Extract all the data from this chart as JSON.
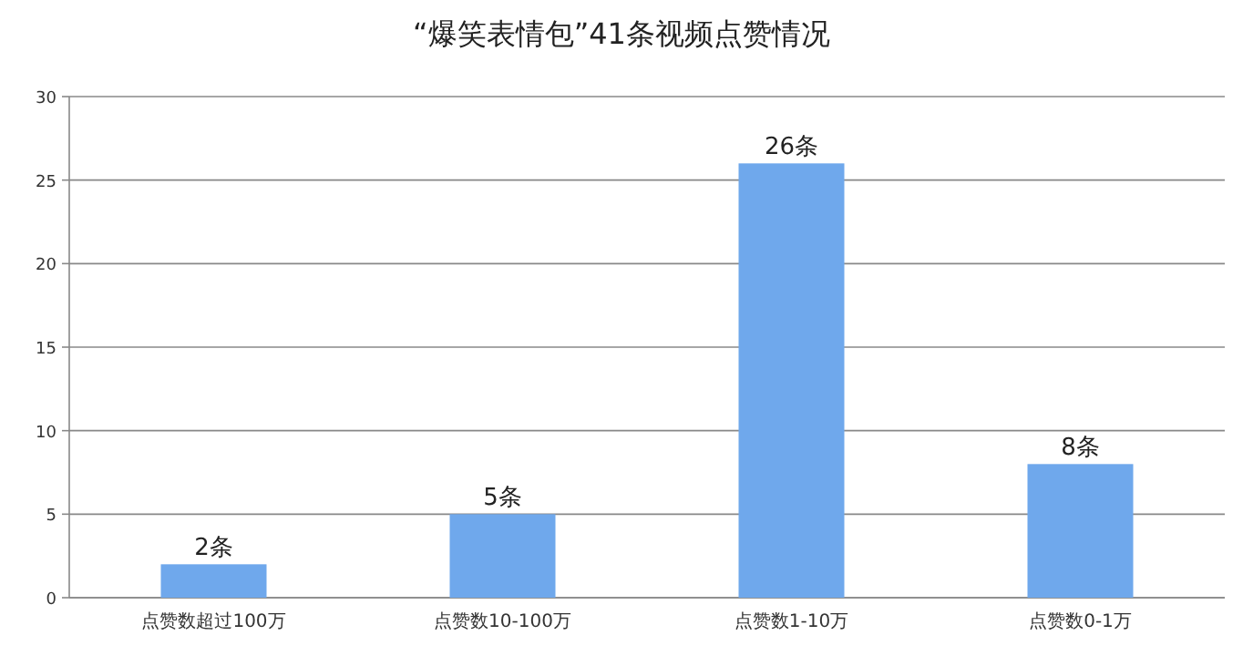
{
  "chart_data": {
    "type": "bar",
    "title": "“爆笑表情包”41条视频点赞情况",
    "categories": [
      "点赞数超过100万",
      "点赞数10-100万",
      "点赞数1-10万",
      "点赞数0-1万"
    ],
    "values": [
      2,
      5,
      26,
      8
    ],
    "value_labels": [
      "2条",
      "5条",
      "26条",
      "8条"
    ],
    "color": "#6fa8ec",
    "ylim": [
      0,
      30
    ],
    "yticks": [
      0,
      5,
      10,
      15,
      20,
      25,
      30
    ],
    "grid": "y"
  }
}
